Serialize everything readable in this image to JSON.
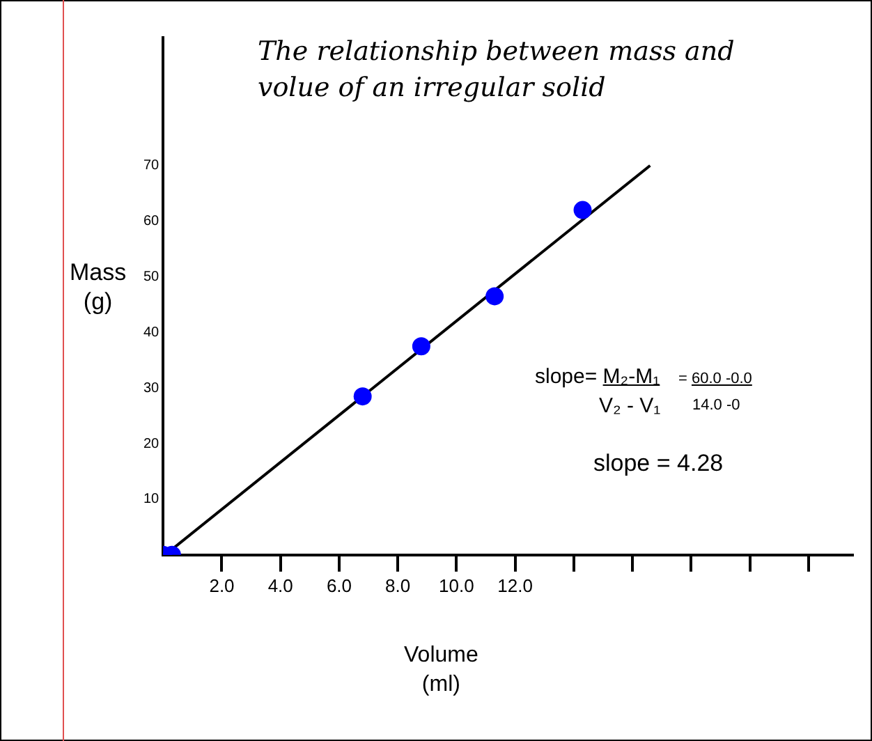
{
  "chart_data": {
    "type": "scatter",
    "title": "The relationship between mass and volue of an irregular solid",
    "xlabel": "Volume\n(ml)",
    "ylabel": "Mass\n(g)",
    "series": [
      {
        "color": "#0000ff",
        "x": [
          0,
          0.3,
          6.8,
          8.8,
          11.3,
          14.3
        ],
        "values": [
          0,
          0,
          28.5,
          37.5,
          46.5,
          62
        ]
      },
      {
        "type": "line",
        "color": "#000000",
        "x": [
          0.3,
          16.6
        ],
        "values": [
          1,
          70
        ],
        "marker": "none"
      }
    ],
    "xlim": [
      0,
      23.5
    ],
    "ylim": [
      0,
      93
    ],
    "xticks": [
      {
        "value": 2,
        "label": "2.0"
      },
      {
        "value": 4,
        "label": "4.0"
      },
      {
        "value": 6,
        "label": "6.0"
      },
      {
        "value": 8,
        "label": "8.0"
      },
      {
        "value": 10,
        "label": "10.0"
      },
      {
        "value": 12,
        "label": "12.0"
      },
      {
        "value": 14,
        "label": null
      },
      {
        "value": 16,
        "label": null
      },
      {
        "value": 18,
        "label": null
      },
      {
        "value": 20,
        "label": null
      },
      {
        "value": 22,
        "label": null
      }
    ],
    "yticks": [
      10,
      20,
      30,
      40,
      50,
      60,
      70
    ],
    "annotations": [
      "slope= M₂-M₁",
      "V₂ - V₁",
      "= 60.0 -0.0",
      "14.0 -0",
      "slope = 4.28"
    ],
    "grid": false,
    "legend": false,
    "marker": "circle"
  }
}
